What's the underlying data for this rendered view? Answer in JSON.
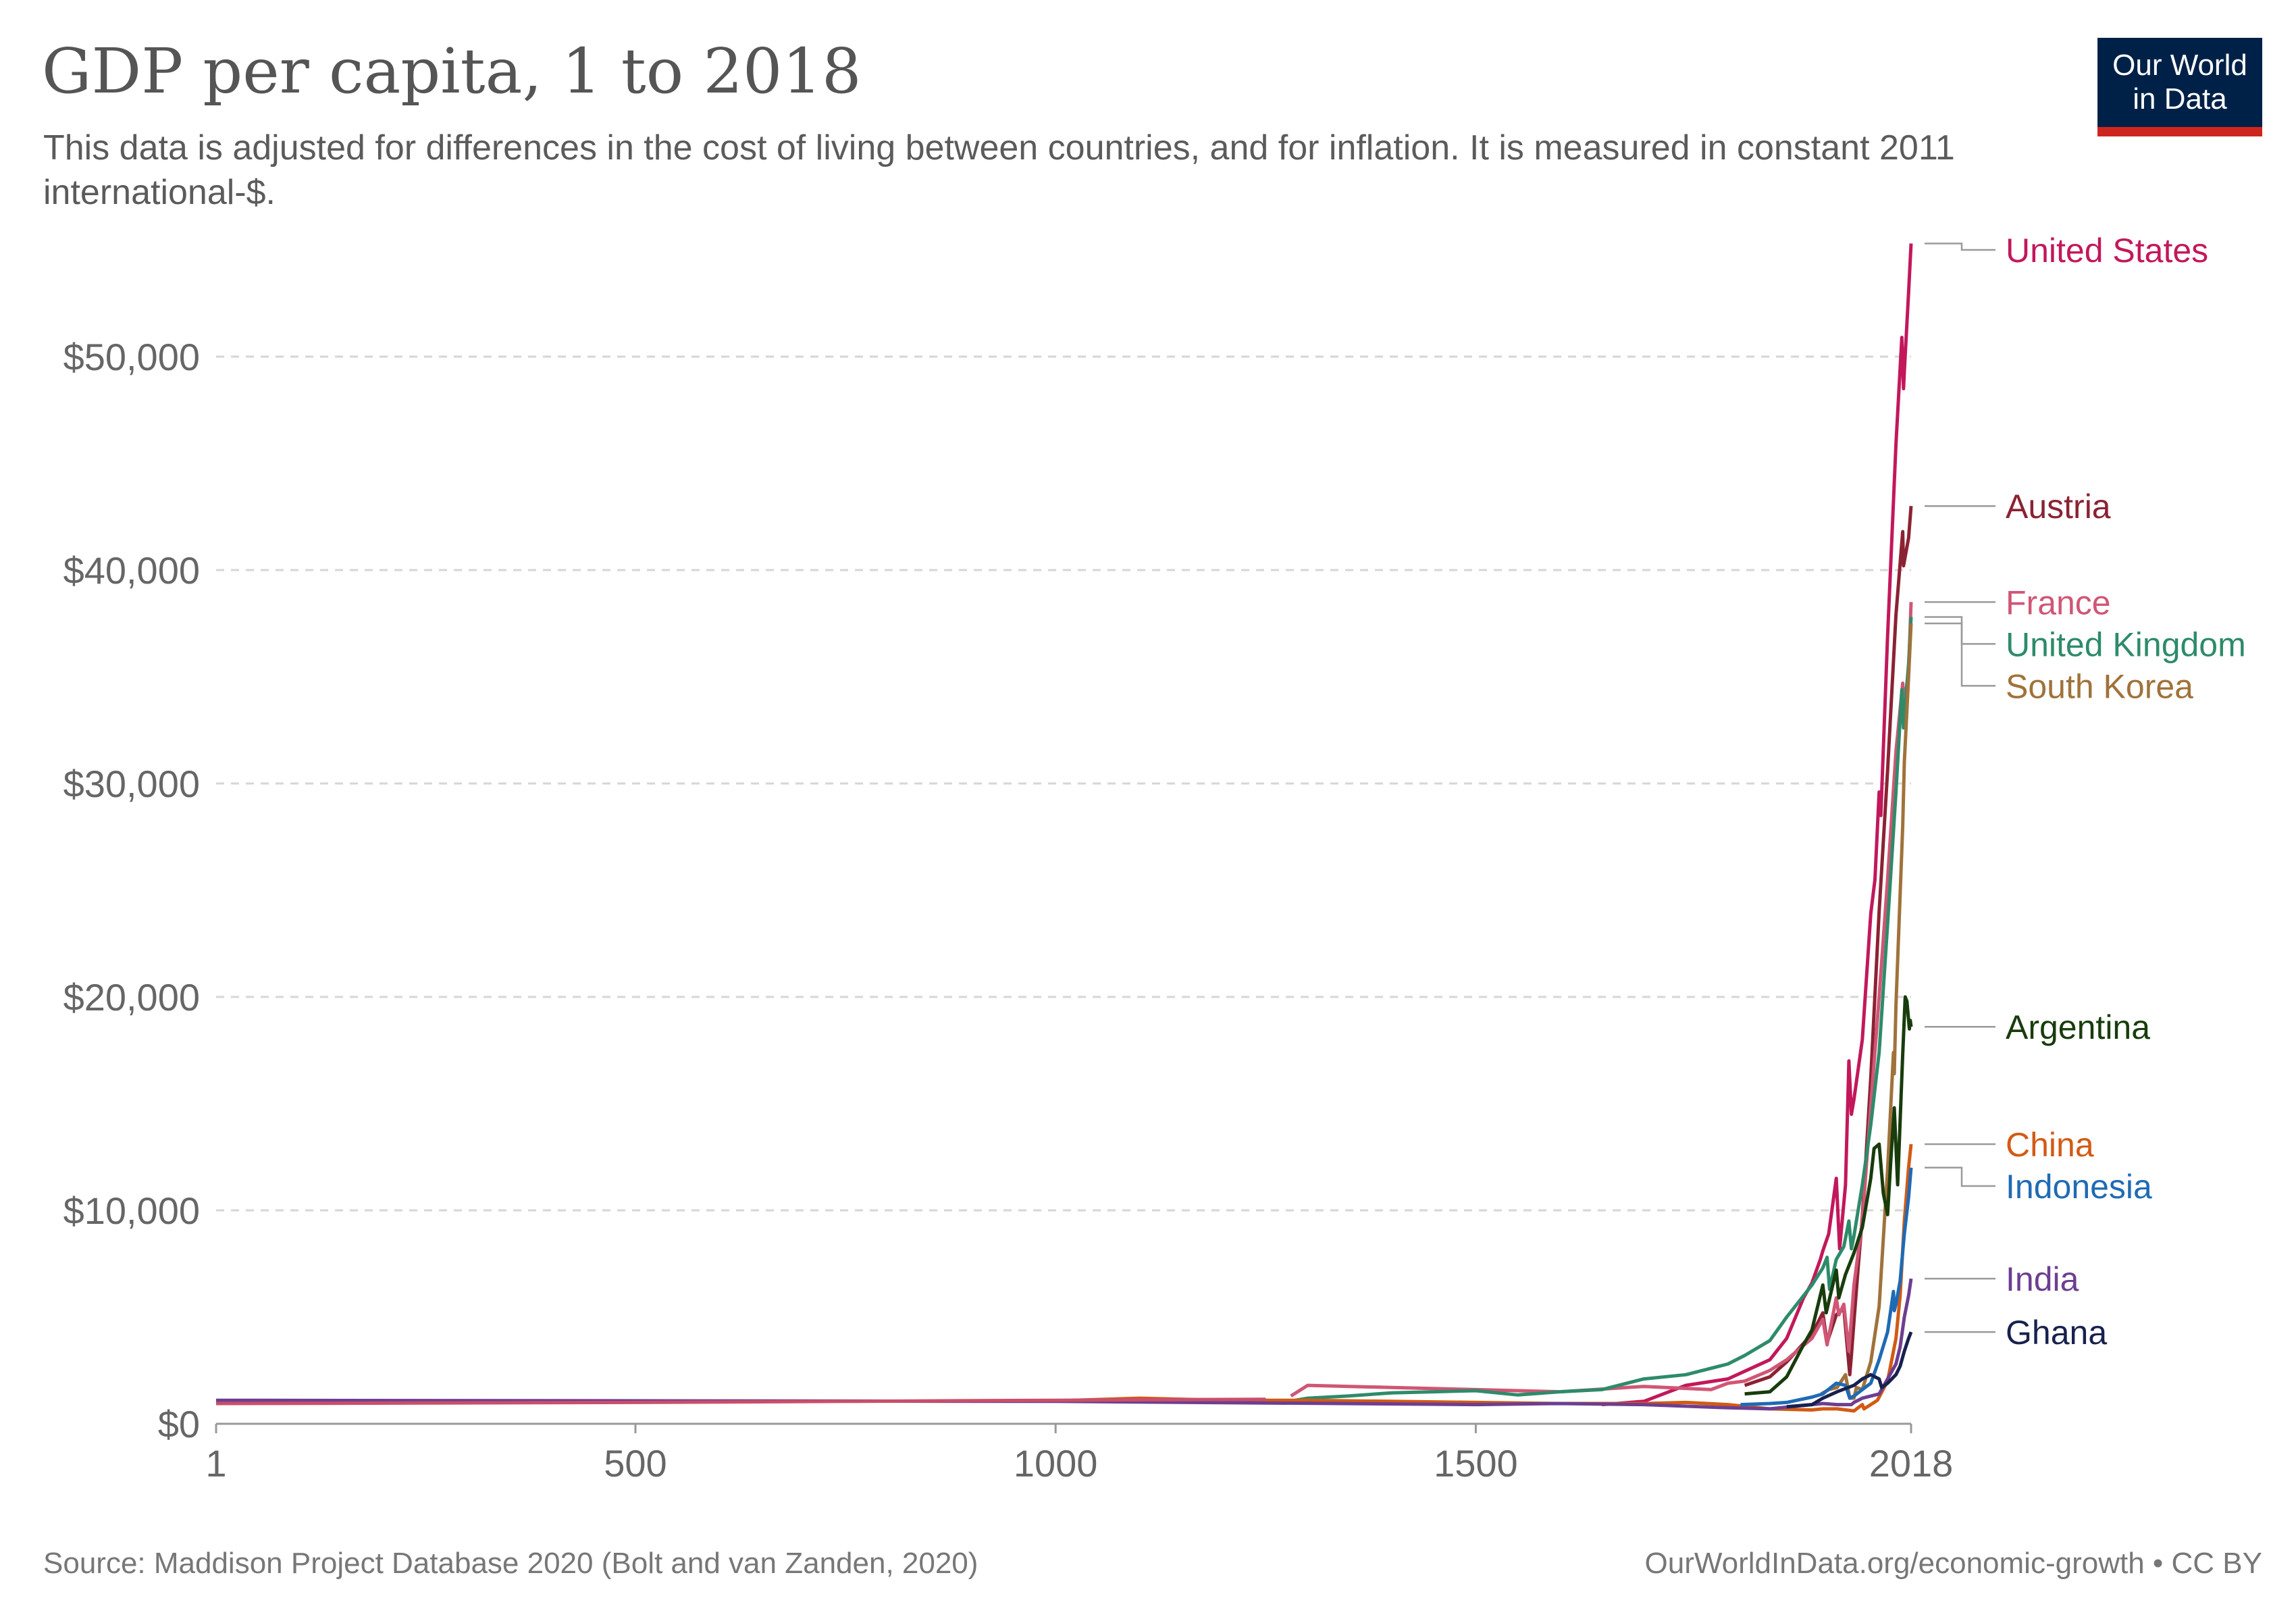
{
  "header": {
    "title": "GDP per capita, 1 to 2018",
    "subtitle": "This data is adjusted for differences in the cost of living between countries, and for inflation. It is measured in constant 2011 international-$.",
    "logo_line1": "Our World",
    "logo_line2": "in Data"
  },
  "footer": {
    "source": "Source: Maddison Project Database 2020 (Bolt and van Zanden, 2020)",
    "license": "OurWorldInData.org/economic-growth • CC BY"
  },
  "chart_data": {
    "type": "line",
    "title": "GDP per capita, 1 to 2018",
    "xlabel": "",
    "ylabel": "",
    "xlim": [
      1,
      2018
    ],
    "ylim": [
      0,
      55000
    ],
    "x_ticks": [
      {
        "value": 1,
        "label": "1"
      },
      {
        "value": 500,
        "label": "500"
      },
      {
        "value": 1000,
        "label": "1000"
      },
      {
        "value": 1500,
        "label": "1500"
      },
      {
        "value": 2018,
        "label": "2018"
      }
    ],
    "y_ticks": [
      {
        "value": 0,
        "label": "$0"
      },
      {
        "value": 10000,
        "label": "$10,000"
      },
      {
        "value": 20000,
        "label": "$20,000"
      },
      {
        "value": 30000,
        "label": "$30,000"
      },
      {
        "value": 40000,
        "label": "$40,000"
      },
      {
        "value": 50000,
        "label": "$50,000"
      }
    ],
    "grid": "horizontal dashed",
    "legend": "direct labels at line ends (right)",
    "series": [
      {
        "name": "United States",
        "color": "#c2185b",
        "label_value": 55000,
        "points": [
          [
            1650,
            900
          ],
          [
            1700,
            1050
          ],
          [
            1750,
            1800
          ],
          [
            1800,
            2100
          ],
          [
            1850,
            3000
          ],
          [
            1870,
            4000
          ],
          [
            1890,
            5900
          ],
          [
            1900,
            6600
          ],
          [
            1910,
            7700
          ],
          [
            1913,
            8100
          ],
          [
            1920,
            8900
          ],
          [
            1929,
            11500
          ],
          [
            1933,
            8200
          ],
          [
            1940,
            11200
          ],
          [
            1944,
            17000
          ],
          [
            1947,
            14500
          ],
          [
            1950,
            15200
          ],
          [
            1960,
            18000
          ],
          [
            1970,
            23900
          ],
          [
            1975,
            25500
          ],
          [
            1980,
            29600
          ],
          [
            1982,
            28500
          ],
          [
            1990,
            36900
          ],
          [
            2000,
            45900
          ],
          [
            2007,
            50900
          ],
          [
            2009,
            48500
          ],
          [
            2010,
            49300
          ],
          [
            2015,
            53000
          ],
          [
            2018,
            55300
          ]
        ]
      },
      {
        "name": "Austria",
        "color": "#8b2233",
        "label_value": 43000,
        "points": [
          [
            1820,
            1800
          ],
          [
            1850,
            2200
          ],
          [
            1870,
            2900
          ],
          [
            1900,
            4200
          ],
          [
            1913,
            5200
          ],
          [
            1918,
            3800
          ],
          [
            1929,
            5100
          ],
          [
            1938,
            5400
          ],
          [
            1945,
            2300
          ],
          [
            1947,
            3200
          ],
          [
            1950,
            4800
          ],
          [
            1955,
            7300
          ],
          [
            1960,
            9700
          ],
          [
            1970,
            16200
          ],
          [
            1980,
            24000
          ],
          [
            1990,
            30600
          ],
          [
            2000,
            37900
          ],
          [
            2008,
            41800
          ],
          [
            2009,
            40200
          ],
          [
            2015,
            41500
          ],
          [
            2018,
            43000
          ]
        ]
      },
      {
        "name": "France",
        "color": "#d05675",
        "label_value": 38500,
        "points": [
          [
            1280,
            1300
          ],
          [
            1300,
            1800
          ],
          [
            1400,
            1700
          ],
          [
            1500,
            1600
          ],
          [
            1600,
            1500
          ],
          [
            1700,
            1750
          ],
          [
            1780,
            1600
          ],
          [
            1800,
            1900
          ],
          [
            1820,
            2000
          ],
          [
            1850,
            2500
          ],
          [
            1870,
            3000
          ],
          [
            1900,
            4000
          ],
          [
            1913,
            4900
          ],
          [
            1918,
            3700
          ],
          [
            1929,
            5900
          ],
          [
            1932,
            5100
          ],
          [
            1938,
            5600
          ],
          [
            1944,
            3400
          ],
          [
            1950,
            6500
          ],
          [
            1960,
            9500
          ],
          [
            1970,
            14900
          ],
          [
            1980,
            20000
          ],
          [
            1990,
            25500
          ],
          [
            2000,
            31500
          ],
          [
            2008,
            34700
          ],
          [
            2009,
            33600
          ],
          [
            2015,
            35200
          ],
          [
            2018,
            38500
          ]
        ]
      },
      {
        "name": "United Kingdom",
        "color": "#2e8b6a",
        "label_value": 37800,
        "points": [
          [
            1252,
            1100
          ],
          [
            1270,
            1000
          ],
          [
            1300,
            1200
          ],
          [
            1348,
            1300
          ],
          [
            1400,
            1450
          ],
          [
            1450,
            1500
          ],
          [
            1500,
            1550
          ],
          [
            1550,
            1350
          ],
          [
            1600,
            1500
          ],
          [
            1650,
            1600
          ],
          [
            1700,
            2100
          ],
          [
            1750,
            2300
          ],
          [
            1800,
            2800
          ],
          [
            1820,
            3200
          ],
          [
            1850,
            3900
          ],
          [
            1870,
            5000
          ],
          [
            1900,
            6500
          ],
          [
            1913,
            7300
          ],
          [
            1918,
            7800
          ],
          [
            1921,
            6300
          ],
          [
            1929,
            7700
          ],
          [
            1938,
            8300
          ],
          [
            1944,
            9500
          ],
          [
            1947,
            8200
          ],
          [
            1950,
            8800
          ],
          [
            1960,
            11200
          ],
          [
            1970,
            14000
          ],
          [
            1980,
            17400
          ],
          [
            1990,
            23400
          ],
          [
            2000,
            29600
          ],
          [
            2007,
            34400
          ],
          [
            2009,
            32600
          ],
          [
            2015,
            35600
          ],
          [
            2018,
            37800
          ]
        ]
      },
      {
        "name": "South Korea",
        "color": "#a0723a",
        "label_value": 37500,
        "points": [
          [
            1911,
            1400
          ],
          [
            1920,
            1600
          ],
          [
            1930,
            1700
          ],
          [
            1940,
            2300
          ],
          [
            1945,
            1200
          ],
          [
            1950,
            1200
          ],
          [
            1953,
            1700
          ],
          [
            1960,
            1600
          ],
          [
            1970,
            2900
          ],
          [
            1980,
            5500
          ],
          [
            1990,
            11900
          ],
          [
            1997,
            17400
          ],
          [
            1998,
            16400
          ],
          [
            2000,
            19600
          ],
          [
            2008,
            28000
          ],
          [
            2010,
            31000
          ],
          [
            2015,
            35000
          ],
          [
            2018,
            37500
          ]
        ]
      },
      {
        "name": "Argentina",
        "color": "#183c0c",
        "label_value": 18600,
        "points": [
          [
            1820,
            1400
          ],
          [
            1850,
            1500
          ],
          [
            1870,
            2200
          ],
          [
            1890,
            3700
          ],
          [
            1900,
            4400
          ],
          [
            1913,
            6500
          ],
          [
            1917,
            5200
          ],
          [
            1929,
            7200
          ],
          [
            1932,
            5900
          ],
          [
            1940,
            7000
          ],
          [
            1950,
            8000
          ],
          [
            1960,
            9200
          ],
          [
            1970,
            11500
          ],
          [
            1974,
            12900
          ],
          [
            1980,
            13100
          ],
          [
            1985,
            10800
          ],
          [
            1990,
            9800
          ],
          [
            1994,
            12400
          ],
          [
            1998,
            14800
          ],
          [
            2002,
            11200
          ],
          [
            2008,
            17300
          ],
          [
            2011,
            20000
          ],
          [
            2013,
            19800
          ],
          [
            2016,
            18500
          ],
          [
            2017,
            18900
          ],
          [
            2018,
            18600
          ]
        ]
      },
      {
        "name": "China",
        "color": "#d35a14",
        "label_value": 13100,
        "points": [
          [
            1020,
            1100
          ],
          [
            1100,
            1200
          ],
          [
            1200,
            1100
          ],
          [
            1300,
            1100
          ],
          [
            1400,
            1050
          ],
          [
            1500,
            1000
          ],
          [
            1600,
            950
          ],
          [
            1700,
            950
          ],
          [
            1750,
            1000
          ],
          [
            1800,
            900
          ],
          [
            1850,
            700
          ],
          [
            1900,
            650
          ],
          [
            1913,
            700
          ],
          [
            1930,
            700
          ],
          [
            1950,
            600
          ],
          [
            1960,
            900
          ],
          [
            1962,
            700
          ],
          [
            1970,
            900
          ],
          [
            1978,
            1100
          ],
          [
            1990,
            2000
          ],
          [
            2000,
            4000
          ],
          [
            2005,
            6000
          ],
          [
            2010,
            9500
          ],
          [
            2015,
            12000
          ],
          [
            2018,
            13100
          ]
        ]
      },
      {
        "name": "Indonesia",
        "color": "#1f6ab5",
        "label_value": 12000,
        "points": [
          [
            1815,
            900
          ],
          [
            1850,
            950
          ],
          [
            1870,
            1000
          ],
          [
            1900,
            1250
          ],
          [
            1913,
            1400
          ],
          [
            1929,
            1900
          ],
          [
            1940,
            1800
          ],
          [
            1945,
            1200
          ],
          [
            1950,
            1300
          ],
          [
            1960,
            1600
          ],
          [
            1970,
            1900
          ],
          [
            1980,
            3000
          ],
          [
            1990,
            4300
          ],
          [
            1997,
            6200
          ],
          [
            1998,
            5300
          ],
          [
            2000,
            5600
          ],
          [
            2005,
            6700
          ],
          [
            2010,
            8900
          ],
          [
            2015,
            10600
          ],
          [
            2018,
            12000
          ]
        ]
      },
      {
        "name": "India",
        "color": "#6d3e91",
        "label_value": 6800,
        "points": [
          [
            1,
            1100
          ],
          [
            1000,
            1050
          ],
          [
            1500,
            900
          ],
          [
            1600,
            950
          ],
          [
            1700,
            900
          ],
          [
            1800,
            750
          ],
          [
            1850,
            700
          ],
          [
            1900,
            900
          ],
          [
            1913,
            950
          ],
          [
            1930,
            900
          ],
          [
            1947,
            900
          ],
          [
            1950,
            1000
          ],
          [
            1960,
            1200
          ],
          [
            1970,
            1300
          ],
          [
            1980,
            1400
          ],
          [
            1990,
            2100
          ],
          [
            2000,
            2800
          ],
          [
            2005,
            3600
          ],
          [
            2010,
            5000
          ],
          [
            2015,
            6000
          ],
          [
            2018,
            6800
          ]
        ]
      },
      {
        "name": "Ghana",
        "color": "#18214d",
        "label_value": 4300,
        "points": [
          [
            1870,
            800
          ],
          [
            1900,
            900
          ],
          [
            1913,
            1200
          ],
          [
            1930,
            1500
          ],
          [
            1950,
            1800
          ],
          [
            1960,
            2100
          ],
          [
            1970,
            2300
          ],
          [
            1980,
            2100
          ],
          [
            1983,
            1700
          ],
          [
            1990,
            1900
          ],
          [
            2000,
            2300
          ],
          [
            2005,
            2700
          ],
          [
            2010,
            3400
          ],
          [
            2015,
            4000
          ],
          [
            2018,
            4300
          ]
        ]
      },
      {
        "name": "",
        "color": "#c94f6a",
        "label_value": null,
        "points": [
          [
            1,
            950
          ],
          [
            250,
            970
          ],
          [
            500,
            1000
          ],
          [
            750,
            1050
          ],
          [
            1000,
            1100
          ],
          [
            1250,
            1150
          ]
        ]
      }
    ]
  }
}
